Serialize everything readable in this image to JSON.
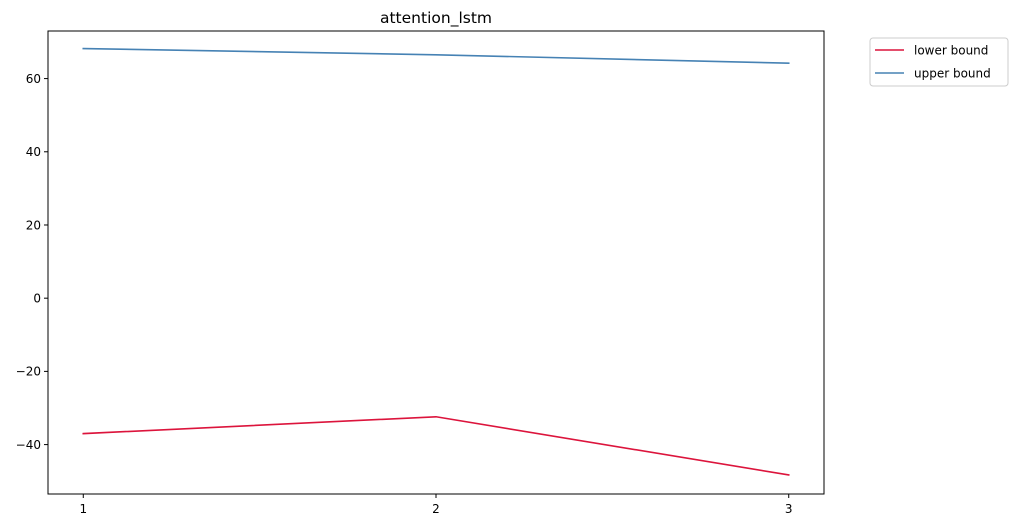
{
  "chart_data": {
    "type": "line",
    "title": "attention_lstm",
    "xlabel": "",
    "ylabel": "",
    "x": [
      1,
      2,
      3
    ],
    "x_ticks": [
      1,
      2,
      3
    ],
    "y_ticks": [
      -40,
      -20,
      0,
      20,
      40,
      60
    ],
    "y_tick_labels": [
      "−40",
      "−20",
      "0",
      "20",
      "40",
      "60"
    ],
    "xlim": [
      0.9,
      3.1
    ],
    "ylim": [
      -53.5,
      73.0
    ],
    "grid": false,
    "legend_position": "outside-top-right",
    "series": [
      {
        "name": "lower bound",
        "color": "#dc143c",
        "values": [
          -37.0,
          -32.4,
          -48.3
        ]
      },
      {
        "name": "upper bound",
        "color": "#4682b4",
        "values": [
          68.2,
          66.5,
          64.2
        ]
      }
    ]
  }
}
